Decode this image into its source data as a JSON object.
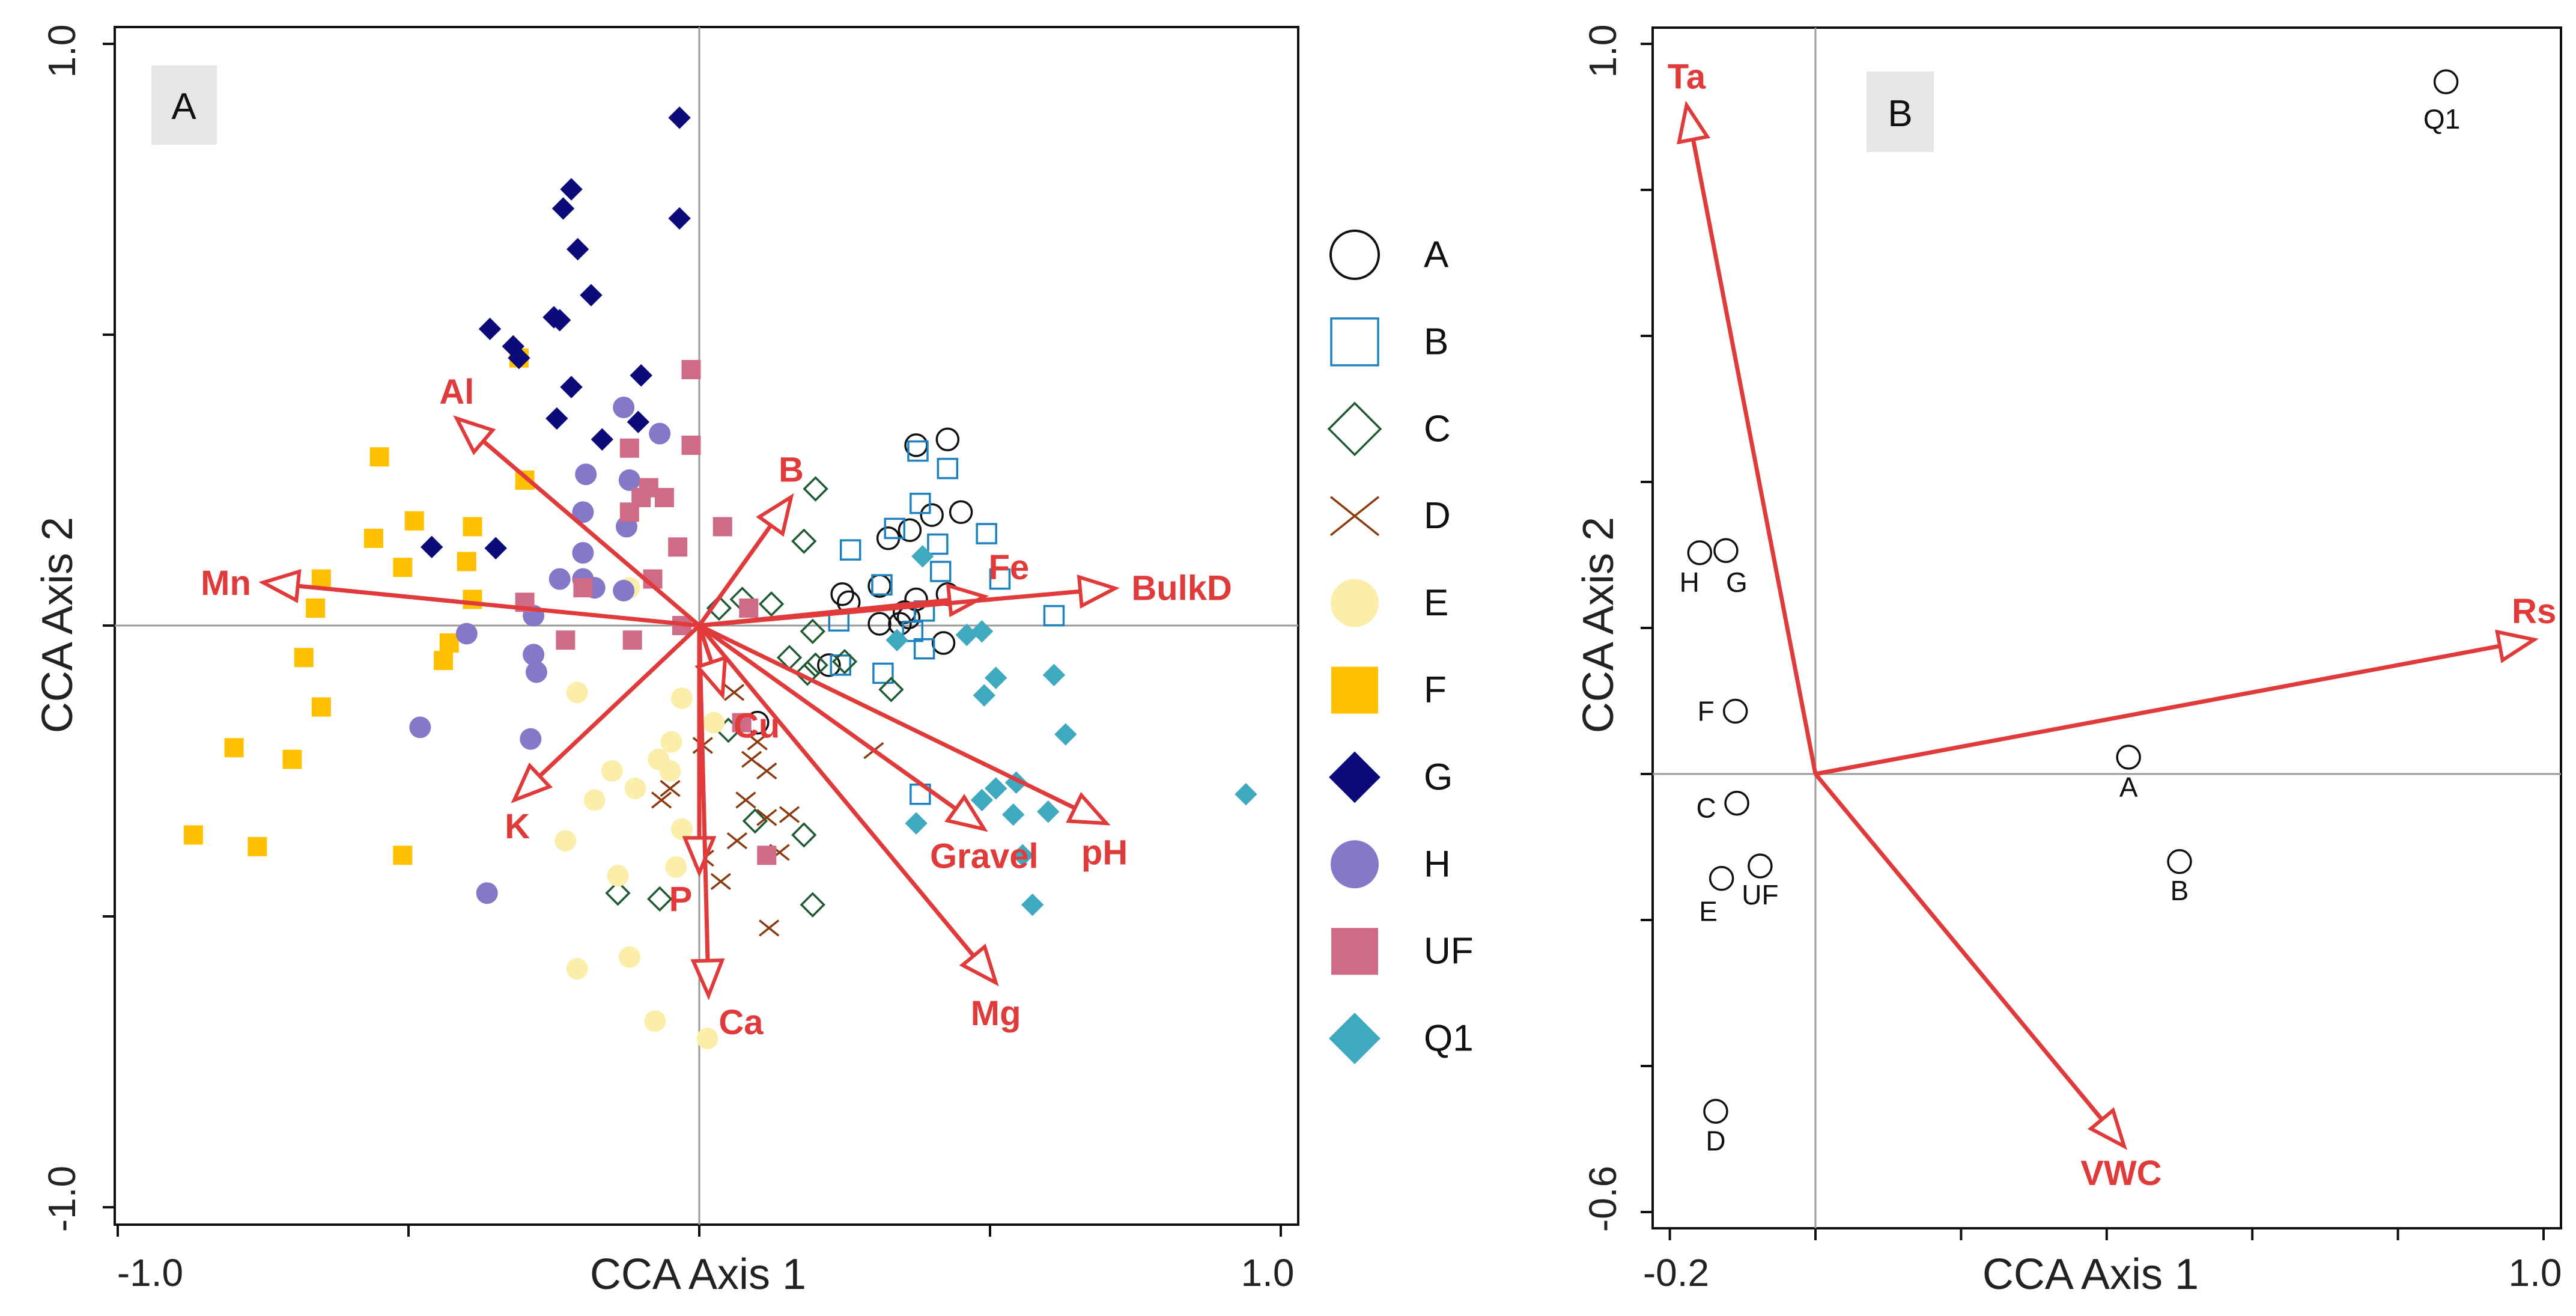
{
  "chart_data": [
    {
      "type": "scatter",
      "panel_label": "A",
      "xlabel": "CCA Axis 1",
      "ylabel": "CCA Axis 2",
      "xlim": [
        -1.0,
        1.0
      ],
      "ylim": [
        -1.0,
        1.0
      ],
      "x_tick_labels": [
        "-1.0",
        "1.0"
      ],
      "y_tick_labels": [
        "1.0",
        "-1.0"
      ],
      "x_ticks": [
        -1.0,
        -0.5,
        0,
        0.5,
        1.0
      ],
      "y_ticks": [
        -1.0,
        -0.5,
        0,
        0.5,
        1.0
      ],
      "legend_position": "right",
      "series": [
        {
          "name": "A",
          "marker": "open-circle",
          "color": "#111111",
          "points": [
            [
              0.373,
              0.31
            ],
            [
              0.427,
              0.32
            ],
            [
              0.325,
              0.15
            ],
            [
              0.362,
              0.164
            ],
            [
              0.4,
              0.19
            ],
            [
              0.45,
              0.195
            ],
            [
              0.246,
              0.054
            ],
            [
              0.31,
              0.068
            ],
            [
              0.373,
              0.045
            ],
            [
              0.427,
              0.054
            ],
            [
              0.36,
              0.014
            ],
            [
              0.31,
              0.003
            ],
            [
              0.223,
              -0.068
            ],
            [
              0.42,
              -0.03
            ],
            [
              0.345,
              0.003
            ],
            [
              0.353,
              0.023
            ],
            [
              0.1,
              -0.167
            ],
            [
              0.257,
              0.04
            ]
          ]
        },
        {
          "name": "B",
          "marker": "open-square",
          "color": "#1f82c0",
          "points": [
            [
              0.376,
              0.3
            ],
            [
              0.427,
              0.27
            ],
            [
              0.38,
              0.21
            ],
            [
              0.26,
              0.13
            ],
            [
              0.336,
              0.167
            ],
            [
              0.41,
              0.14
            ],
            [
              0.494,
              0.158
            ],
            [
              0.314,
              0.07
            ],
            [
              0.415,
              0.093
            ],
            [
              0.517,
              0.08
            ],
            [
              0.24,
              0.008
            ],
            [
              0.367,
              -0.01
            ],
            [
              0.61,
              0.017
            ],
            [
              0.243,
              -0.068
            ],
            [
              0.316,
              -0.082
            ],
            [
              0.38,
              -0.29
            ],
            [
              0.387,
              0.025
            ],
            [
              0.387,
              -0.04
            ]
          ]
        },
        {
          "name": "C",
          "marker": "open-diamond",
          "color": "#1e5a32",
          "points": [
            [
              0.2,
              0.235
            ],
            [
              0.18,
              0.145
            ],
            [
              0.074,
              0.045
            ],
            [
              0.124,
              0.037
            ],
            [
              0.034,
              0.03
            ],
            [
              0.195,
              -0.01
            ],
            [
              0.155,
              -0.055
            ],
            [
              0.2,
              -0.068
            ],
            [
              0.25,
              -0.062
            ],
            [
              0.186,
              -0.082
            ],
            [
              0.33,
              -0.11
            ],
            [
              0.05,
              -0.18
            ],
            [
              0.18,
              -0.36
            ],
            [
              0.096,
              -0.336
            ],
            [
              -0.14,
              -0.46
            ],
            [
              -0.068,
              -0.47
            ],
            [
              0.195,
              -0.48
            ]
          ]
        },
        {
          "name": "D",
          "marker": "cross",
          "color": "#8b3a0f",
          "points": [
            [
              0.06,
              -0.115
            ],
            [
              0.006,
              -0.206
            ],
            [
              0.1,
              -0.2
            ],
            [
              0.09,
              -0.23
            ],
            [
              0.116,
              -0.25
            ],
            [
              -0.065,
              -0.3
            ],
            [
              -0.05,
              -0.28
            ],
            [
              0.08,
              -0.3
            ],
            [
              0.116,
              -0.33
            ],
            [
              0.155,
              -0.325
            ],
            [
              0.065,
              -0.37
            ],
            [
              0.138,
              -0.39
            ],
            [
              0.008,
              -0.4
            ],
            [
              0.037,
              -0.44
            ],
            [
              0.12,
              -0.52
            ],
            [
              0.3,
              -0.215
            ]
          ]
        },
        {
          "name": "E",
          "marker": "filled-circle",
          "color": "#fbeeaa",
          "points": [
            [
              -0.12,
              0.065
            ],
            [
              -0.21,
              -0.115
            ],
            [
              -0.03,
              -0.125
            ],
            [
              -0.15,
              -0.25
            ],
            [
              -0.07,
              -0.23
            ],
            [
              -0.11,
              -0.28
            ],
            [
              -0.05,
              -0.25
            ],
            [
              -0.18,
              -0.3
            ],
            [
              -0.23,
              -0.37
            ],
            [
              -0.03,
              -0.35
            ],
            [
              -0.14,
              -0.43
            ],
            [
              -0.04,
              -0.415
            ],
            [
              -0.12,
              -0.57
            ],
            [
              -0.21,
              -0.59
            ],
            [
              -0.076,
              -0.68
            ],
            [
              0.014,
              -0.71
            ],
            [
              0.025,
              -0.167
            ],
            [
              -0.048,
              -0.2
            ]
          ]
        },
        {
          "name": "F",
          "marker": "filled-square",
          "color": "#ffc000",
          "points": [
            [
              -0.31,
              0.46
            ],
            [
              -0.55,
              0.29
            ],
            [
              -0.3,
              0.25
            ],
            [
              -0.49,
              0.18
            ],
            [
              -0.56,
              0.15
            ],
            [
              -0.39,
              0.17
            ],
            [
              -0.51,
              0.1
            ],
            [
              -0.65,
              0.08
            ],
            [
              -0.4,
              0.11
            ],
            [
              -0.66,
              0.03
            ],
            [
              -0.39,
              0.045
            ],
            [
              -0.44,
              -0.06
            ],
            [
              -0.68,
              -0.055
            ],
            [
              -0.65,
              -0.14
            ],
            [
              -0.8,
              -0.21
            ],
            [
              -0.7,
              -0.23
            ],
            [
              -0.87,
              -0.36
            ],
            [
              -0.76,
              -0.38
            ],
            [
              -0.51,
              -0.395
            ],
            [
              -0.43,
              -0.03
            ]
          ]
        },
        {
          "name": "G",
          "marker": "filled-diamond",
          "color": "#0a0a78",
          "points": [
            [
              -0.034,
              0.873
            ],
            [
              -0.034,
              0.7
            ],
            [
              -0.22,
              0.75
            ],
            [
              -0.234,
              0.717
            ],
            [
              -0.209,
              0.647
            ],
            [
              -0.186,
              0.568
            ],
            [
              -0.36,
              0.51
            ],
            [
              -0.32,
              0.48
            ],
            [
              -0.31,
              0.46
            ],
            [
              -0.25,
              0.53
            ],
            [
              -0.24,
              0.525
            ],
            [
              -0.22,
              0.41
            ],
            [
              -0.1,
              0.43
            ],
            [
              -0.245,
              0.356
            ],
            [
              -0.167,
              0.32
            ],
            [
              -0.105,
              0.35
            ],
            [
              -0.46,
              0.135
            ],
            [
              -0.35,
              0.133
            ]
          ]
        },
        {
          "name": "H",
          "marker": "filled-circle",
          "color": "#8478c8",
          "points": [
            [
              -0.13,
              0.375
            ],
            [
              -0.068,
              0.33
            ],
            [
              -0.195,
              0.26
            ],
            [
              -0.12,
              0.25
            ],
            [
              -0.2,
              0.195
            ],
            [
              -0.125,
              0.17
            ],
            [
              -0.2,
              0.125
            ],
            [
              -0.24,
              0.08
            ],
            [
              -0.2,
              0.08
            ],
            [
              -0.18,
              0.065
            ],
            [
              -0.285,
              0.017
            ],
            [
              -0.4,
              -0.014
            ],
            [
              -0.285,
              -0.05
            ],
            [
              -0.28,
              -0.08
            ],
            [
              -0.48,
              -0.175
            ],
            [
              -0.29,
              -0.195
            ],
            [
              -0.365,
              -0.46
            ],
            [
              -0.13,
              0.06
            ]
          ]
        },
        {
          "name": "UF",
          "marker": "filled-square",
          "color": "#cf6b87",
          "points": [
            [
              -0.014,
              0.44
            ],
            [
              -0.014,
              0.31
            ],
            [
              -0.12,
              0.305
            ],
            [
              -0.087,
              0.237
            ],
            [
              -0.06,
              0.22
            ],
            [
              -0.1,
              0.22
            ],
            [
              -0.12,
              0.195
            ],
            [
              0.04,
              0.17
            ],
            [
              -0.037,
              0.135
            ],
            [
              -0.08,
              0.08
            ],
            [
              -0.2,
              0.065
            ],
            [
              -0.3,
              0.04
            ],
            [
              -0.03,
              0.0
            ],
            [
              -0.23,
              -0.025
            ],
            [
              -0.115,
              -0.025
            ],
            [
              0.085,
              0.03
            ],
            [
              0.073,
              -0.167
            ],
            [
              0.116,
              -0.395
            ]
          ]
        },
        {
          "name": "Q1",
          "marker": "filled-diamond",
          "color": "#3fa9c0",
          "points": [
            [
              0.384,
              0.119
            ],
            [
              0.34,
              -0.025
            ],
            [
              0.46,
              -0.016
            ],
            [
              0.486,
              -0.01
            ],
            [
              0.51,
              -0.09
            ],
            [
              0.49,
              -0.12
            ],
            [
              0.61,
              -0.085
            ],
            [
              0.63,
              -0.187
            ],
            [
              0.486,
              -0.3
            ],
            [
              0.51,
              -0.28
            ],
            [
              0.545,
              -0.27
            ],
            [
              0.54,
              -0.325
            ],
            [
              0.6,
              -0.32
            ],
            [
              0.373,
              -0.34
            ],
            [
              0.556,
              -0.395
            ],
            [
              0.573,
              -0.48
            ],
            [
              0.94,
              -0.29
            ]
          ]
        }
      ],
      "vectors": [
        {
          "label": "Mn",
          "x": -0.75,
          "y": 0.074
        },
        {
          "label": "Al",
          "x": -0.417,
          "y": 0.356
        },
        {
          "label": "B",
          "x": 0.158,
          "y": 0.221
        },
        {
          "label": "Fe",
          "x": 0.49,
          "y": 0.05
        },
        {
          "label": "BulkD",
          "x": 0.715,
          "y": 0.064
        },
        {
          "label": "K",
          "x": -0.318,
          "y": -0.3
        },
        {
          "label": "P",
          "x": 0.0,
          "y": -0.425
        },
        {
          "label": "Ca",
          "x": 0.016,
          "y": -0.636
        },
        {
          "label": "Mg",
          "x": 0.51,
          "y": -0.614
        },
        {
          "label": "Gravel",
          "x": 0.49,
          "y": -0.35
        },
        {
          "label": "pH",
          "x": 0.7,
          "y": -0.34
        },
        {
          "label": "Cu",
          "x": 0.04,
          "y": -0.12
        }
      ]
    },
    {
      "type": "scatter",
      "panel_label": "B",
      "xlabel": "CCA Axis 1",
      "ylabel": "CCA Axis 2",
      "xlim": [
        -0.2,
        1.0
      ],
      "ylim": [
        -0.6,
        1.0
      ],
      "x_tick_labels": [
        "-0.2",
        "1.0"
      ],
      "y_tick_labels": [
        "1.0",
        "-0.6"
      ],
      "x_ticks": [
        -0.2,
        0,
        0.2,
        0.4,
        0.6,
        0.8,
        1.0
      ],
      "y_ticks": [
        -0.6,
        -0.4,
        -0.2,
        0,
        0.2,
        0.4,
        0.6,
        0.8,
        1.0
      ],
      "sites": [
        {
          "label": "Q1",
          "x": 0.866,
          "y": 0.948
        },
        {
          "label": "H",
          "x": -0.159,
          "y": 0.303
        },
        {
          "label": "G",
          "x": -0.123,
          "y": 0.306
        },
        {
          "label": "F",
          "x": -0.11,
          "y": 0.086
        },
        {
          "label": "C",
          "x": -0.108,
          "y": -0.04
        },
        {
          "label": "E",
          "x": -0.129,
          "y": -0.143
        },
        {
          "label": "UF",
          "x": -0.076,
          "y": -0.126
        },
        {
          "label": "A",
          "x": 0.43,
          "y": 0.023
        },
        {
          "label": "B",
          "x": 0.5,
          "y": -0.12
        },
        {
          "label": "D",
          "x": -0.137,
          "y": -0.462
        }
      ],
      "vectors": [
        {
          "label": "Ta",
          "x": -0.177,
          "y": 0.916
        },
        {
          "label": "Rs",
          "x": 0.987,
          "y": 0.184
        },
        {
          "label": "VWC",
          "x": 0.424,
          "y": -0.51
        }
      ]
    }
  ],
  "colors": {
    "vector": "#e03a3a",
    "grid": "#9a9a9a",
    "panel_tag_bg": "#e6e6e6"
  }
}
